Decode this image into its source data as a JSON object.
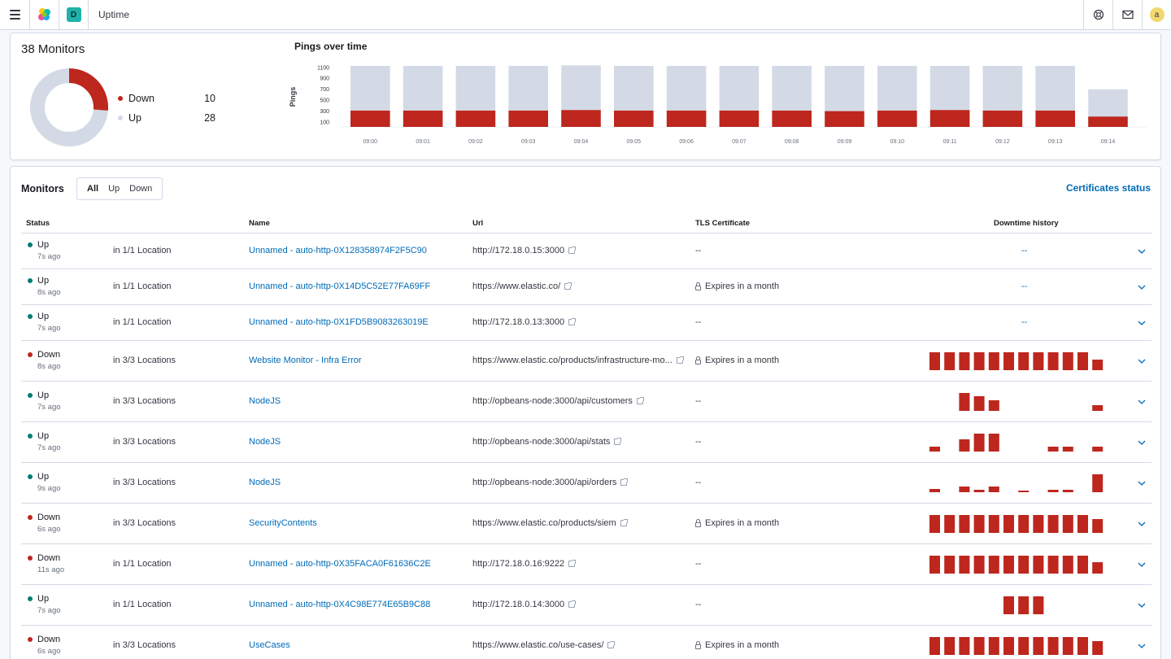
{
  "header": {
    "space_initial": "D",
    "app_title": "Uptime",
    "user_initial": "a"
  },
  "snapshot": {
    "title": "38 Monitors",
    "down_label": "Down",
    "down_count": "10",
    "up_label": "Up",
    "up_count": "28",
    "down_value": 10,
    "up_value": 28,
    "colors": {
      "down": "#bd271e",
      "up": "#d3dae6"
    }
  },
  "pings": {
    "title": "Pings over time",
    "ylabel": "Pings"
  },
  "chart_data": {
    "type": "bar",
    "categories": [
      "09:00",
      "09:01",
      "09:02",
      "09:03",
      "09:04",
      "09:05",
      "09:06",
      "09:07",
      "09:08",
      "09:09",
      "09:10",
      "09:11",
      "09:12",
      "09:13",
      "09:14"
    ],
    "series": [
      {
        "name": "Down",
        "values": [
          300,
          300,
          300,
          300,
          310,
          300,
          300,
          300,
          300,
          290,
          300,
          310,
          300,
          300,
          190
        ]
      },
      {
        "name": "Up",
        "values": [
          820,
          820,
          820,
          820,
          820,
          820,
          820,
          820,
          820,
          830,
          820,
          810,
          820,
          820,
          500
        ]
      }
    ],
    "stacked": true,
    "yticks": [
      100,
      300,
      500,
      700,
      900,
      1100
    ],
    "ylim": [
      0,
      1150
    ],
    "ylabel": "Pings",
    "colors": [
      "#bd271e",
      "#d3dae6"
    ]
  },
  "monitors": {
    "title": "Monitors",
    "filters": [
      "All",
      "Up",
      "Down"
    ],
    "cert_link": "Certificates status",
    "columns": {
      "status": "Status",
      "name": "Name",
      "url": "Url",
      "tls": "TLS Certificate",
      "history": "Downtime history"
    },
    "dash": "--",
    "rows": [
      {
        "status": "Up",
        "ago": "7s ago",
        "location": "in 1/1 Location",
        "name": "Unnamed - auto-http-0X128358974F2F5C90",
        "url": "http://172.18.0.15:3000",
        "tls": "--",
        "history": []
      },
      {
        "status": "Up",
        "ago": "8s ago",
        "location": "in 1/1 Location",
        "name": "Unnamed - auto-http-0X14D5C52E77FA69FF",
        "url": "https://www.elastic.co/",
        "tls": "Expires in a month",
        "history": []
      },
      {
        "status": "Up",
        "ago": "7s ago",
        "location": "in 1/1 Location",
        "name": "Unnamed - auto-http-0X1FD5B9083263019E",
        "url": "http://172.18.0.13:3000",
        "tls": "--",
        "history": []
      },
      {
        "status": "Down",
        "ago": "8s ago",
        "location": "in 3/3 Locations",
        "name": "Website Monitor - Infra Error",
        "url": "https://www.elastic.co/products/infrastructure-mo...",
        "tls": "Expires in a month",
        "history": [
          1,
          1,
          1,
          1,
          1,
          1,
          1,
          1,
          1,
          1,
          1,
          0.6
        ]
      },
      {
        "status": "Up",
        "ago": "7s ago",
        "location": "in 3/3 Locations",
        "name": "NodeJS",
        "url": "http://opbeans-node:3000/api/customers",
        "tls": "--",
        "history": [
          0,
          0,
          1,
          0.8,
          0.6,
          0,
          0,
          0,
          0,
          0,
          0,
          0.3
        ]
      },
      {
        "status": "Up",
        "ago": "7s ago",
        "location": "in 3/3 Locations",
        "name": "NodeJS",
        "url": "http://opbeans-node:3000/api/stats",
        "tls": "--",
        "history": [
          0.25,
          0,
          0.7,
          1,
          1,
          0,
          0,
          0,
          0.25,
          0.25,
          0,
          0.25
        ]
      },
      {
        "status": "Up",
        "ago": "9s ago",
        "location": "in 3/3 Locations",
        "name": "NodeJS",
        "url": "http://opbeans-node:3000/api/orders",
        "tls": "--",
        "history": [
          0.2,
          0,
          0.3,
          0.12,
          0.3,
          0,
          0.1,
          0,
          0.12,
          0.12,
          0,
          1
        ]
      },
      {
        "status": "Down",
        "ago": "6s ago",
        "location": "in 3/3 Locations",
        "name": "SecurityContents",
        "url": "https://www.elastic.co/products/siem",
        "tls": "Expires in a month",
        "history": [
          1,
          1,
          1,
          1,
          1,
          1,
          1,
          1,
          1,
          1,
          1,
          0.75
        ]
      },
      {
        "status": "Down",
        "ago": "11s ago",
        "location": "in 1/1 Location",
        "name": "Unnamed - auto-http-0X35FACA0F61636C2E",
        "url": "http://172.18.0.16:9222",
        "tls": "--",
        "history": [
          1,
          1,
          1,
          1,
          1,
          1,
          1,
          1,
          1,
          1,
          1,
          0.65
        ]
      },
      {
        "status": "Up",
        "ago": "7s ago",
        "location": "in 1/1 Location",
        "name": "Unnamed - auto-http-0X4C98E774E65B9C88",
        "url": "http://172.18.0.14:3000",
        "tls": "--",
        "history": [
          0,
          0,
          0,
          0,
          0,
          1,
          1,
          1,
          0,
          0,
          0,
          0
        ]
      },
      {
        "status": "Down",
        "ago": "6s ago",
        "location": "in 3/3 Locations",
        "name": "UseCases",
        "url": "https://www.elastic.co/use-cases/",
        "tls": "Expires in a month",
        "history": [
          1,
          1,
          1,
          1,
          1,
          1,
          1,
          1,
          1,
          1,
          1,
          0.75
        ]
      }
    ]
  },
  "status_colors": {
    "Up": "#017d73",
    "Down": "#bd271e"
  }
}
